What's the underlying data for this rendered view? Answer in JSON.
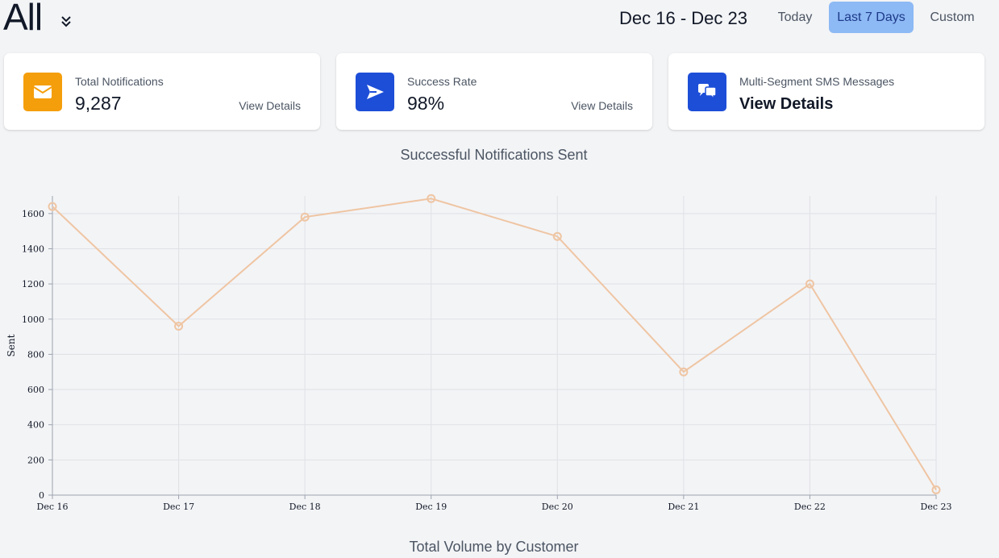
{
  "header": {
    "scope_title": "All",
    "date_range": "Dec 16 - Dec 23",
    "range_buttons": {
      "today": "Today",
      "last7": "Last 7 Days",
      "custom": "Custom"
    }
  },
  "cards": [
    {
      "label": "Total Notifications",
      "value": "9,287",
      "link": "View Details",
      "icon": "envelope-icon",
      "color": "#f59e0b"
    },
    {
      "label": "Success Rate",
      "value": "98%",
      "link": "View Details",
      "icon": "send-icon",
      "color": "#1d4ed8"
    },
    {
      "label": "Multi-Segment SMS Messages",
      "value": "View Details",
      "icon": "chat-bubbles-icon",
      "color": "#1d4ed8"
    }
  ],
  "chart_data": {
    "type": "line",
    "title": "Successful Notifications Sent",
    "ylabel": "Sent",
    "xlabel": "",
    "categories": [
      "Dec 16",
      "Dec 17",
      "Dec 18",
      "Dec 19",
      "Dec 20",
      "Dec 21",
      "Dec 22",
      "Dec 23"
    ],
    "series": [
      {
        "values": [
          1640,
          960,
          1580,
          1685,
          1470,
          700,
          1200,
          30
        ],
        "color": "#efc5a3"
      }
    ],
    "ylim": [
      0,
      1700
    ],
    "yticks": [
      0,
      200,
      400,
      600,
      800,
      1000,
      1200,
      1400,
      1600
    ],
    "grid": true
  },
  "next_section": {
    "title": "Total Volume by Customer"
  }
}
